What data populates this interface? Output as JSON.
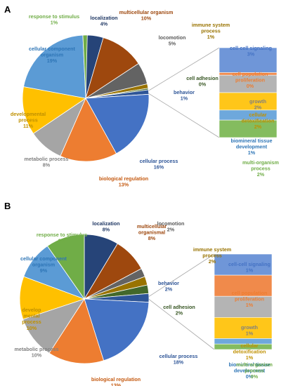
{
  "chart_data": [
    {
      "type": "pie",
      "panel_label": "A",
      "categories": [
        "localization",
        "multicellular organism",
        "locomotion",
        "immune system process",
        "cell adhesion",
        "behavior",
        "cellular process",
        "biological regulation",
        "metabolic process",
        "developmental process",
        "cellular component organism",
        "response to stimulus"
      ],
      "values": [
        4,
        10,
        5,
        1,
        0,
        1,
        16,
        13,
        8,
        11,
        19,
        1
      ],
      "labels": [
        {
          "name": [
            "localization"
          ],
          "pct": "4%",
          "color": "#203864"
        },
        {
          "name": [
            "multicellular organism"
          ],
          "pct": "10%",
          "color": "#9e480e"
        },
        {
          "name": [
            "locomotion"
          ],
          "pct": "5%",
          "color": "#595959"
        },
        {
          "name": [
            "immune system",
            "process"
          ],
          "pct": "1%",
          "color": "#997300"
        },
        {
          "name": [
            "cell adhesion"
          ],
          "pct": "0%",
          "color": "#375623"
        },
        {
          "name": [
            "behavior"
          ],
          "pct": "1%",
          "color": "#2e5597"
        },
        {
          "name": [
            "cellular process"
          ],
          "pct": "16%",
          "color": "#2e5597"
        },
        {
          "name": [
            "biological regulation"
          ],
          "pct": "13%",
          "color": "#c55a11"
        },
        {
          "name": [
            "metabolic process"
          ],
          "pct": "8%",
          "color": "#808080"
        },
        {
          "name": [
            "developmental",
            "process"
          ],
          "pct": "11%",
          "color": "#bf9000"
        },
        {
          "name": [
            "cellular component",
            "organism"
          ],
          "pct": "19%",
          "color": "#2e75b6"
        },
        {
          "name": [
            "response to stimulus"
          ],
          "pct": "1%",
          "color": "#70ad47"
        }
      ],
      "breakdown": {
        "categories": [
          "cell-cell signaling",
          "cell population proliferation",
          "growth",
          "cellular detoxification",
          "biomineral tissue development",
          "multi-organism process"
        ],
        "values": [
          3,
          0,
          2,
          2,
          1,
          2
        ],
        "labels": [
          {
            "name": [
              "cell-cell signaling"
            ],
            "pct": "3%",
            "color": "#4472c4"
          },
          {
            "name": [
              "cell population",
              "proliferation"
            ],
            "pct": "0%",
            "color": "#ed7d31"
          },
          {
            "name": [
              "growth"
            ],
            "pct": "2%",
            "color": "#808080"
          },
          {
            "name": [
              "cellular",
              "detoxification"
            ],
            "pct": "2%",
            "color": "#bf9000"
          },
          {
            "name": [
              "biomineral tissue",
              "development"
            ],
            "pct": "1%",
            "color": "#2e75b6"
          },
          {
            "name": [
              "multi-organism",
              "process"
            ],
            "pct": "2%",
            "color": "#70ad47"
          }
        ]
      }
    },
    {
      "type": "pie",
      "panel_label": "B",
      "categories": [
        "localization",
        "multicellular organismal",
        "locomotion",
        "immune system process",
        "behavior",
        "cell adhesion",
        "cellular process",
        "biological regulation",
        "metabolic process",
        "developmental process",
        "cellular component organism",
        "response to stimulus"
      ],
      "values": [
        8,
        8,
        2,
        2,
        2,
        2,
        18,
        13,
        10,
        10,
        9,
        9
      ],
      "labels": [
        {
          "name": [
            "localization"
          ],
          "pct": "8%",
          "color": "#203864"
        },
        {
          "name": [
            "multicellular",
            "organismal"
          ],
          "pct": "8%",
          "color": "#9e480e"
        },
        {
          "name": [
            "locomotion"
          ],
          "pct": "2%",
          "color": "#595959"
        },
        {
          "name": [
            "immune system",
            "process"
          ],
          "pct": "2%",
          "color": "#997300"
        },
        {
          "name": [
            "behavior"
          ],
          "pct": "2%",
          "color": "#2e5597"
        },
        {
          "name": [
            "cell adhesion"
          ],
          "pct": "2%",
          "color": "#375623"
        },
        {
          "name": [
            "cellular process"
          ],
          "pct": "18%",
          "color": "#2e5597"
        },
        {
          "name": [
            "biological regulation"
          ],
          "pct": "13%",
          "color": "#c55a11"
        },
        {
          "name": [
            "metabolic process"
          ],
          "pct": "10%",
          "color": "#808080"
        },
        {
          "name": [
            "develop",
            "mental",
            "process"
          ],
          "pct": "10%",
          "color": "#bf9000"
        },
        {
          "name": [
            "cellular component",
            "organism"
          ],
          "pct": "9%",
          "color": "#2e75b6"
        },
        {
          "name": [
            "response to stimulus"
          ],
          "pct": "9%",
          "color": "#70ad47"
        }
      ],
      "breakdown": {
        "categories": [
          "cell-cell signaling",
          "cell population proliferation",
          "growth",
          "cellular detoxification",
          "biomineral tissue development",
          "multi-organism process"
        ],
        "values": [
          1,
          1,
          1,
          1,
          0,
          0
        ],
        "labels": [
          {
            "name": [
              "cell-cell signaling"
            ],
            "pct": "1%",
            "color": "#4472c4"
          },
          {
            "name": [
              "cell population",
              "proliferation"
            ],
            "pct": "1%",
            "color": "#ed7d31"
          },
          {
            "name": [
              "growth"
            ],
            "pct": "1%",
            "color": "#808080"
          },
          {
            "name": [
              "cellular",
              "detoxification"
            ],
            "pct": "1%",
            "color": "#bf9000"
          },
          {
            "name": [
              "biomineral tissue",
              "development"
            ],
            "pct": "0%",
            "color": "#2e75b6"
          },
          {
            "name": [
              "multi-organism",
              "process"
            ],
            "pct": "0%",
            "color": "#70ad47"
          }
        ]
      }
    }
  ],
  "colors": {
    "slices": [
      "#264478",
      "#9e480e",
      "#636363",
      "#997300",
      "#43682b",
      "#2e5597",
      "#4472c4",
      "#ed7d31",
      "#a5a5a5",
      "#ffc000",
      "#5b9bd5",
      "#70ad47"
    ],
    "bar": [
      "#6f96d8",
      "#f08a4b",
      "#b4b4b4",
      "#ffc619",
      "#6ea8dc",
      "#84bc5f"
    ],
    "leader": "#a6a6a6"
  }
}
